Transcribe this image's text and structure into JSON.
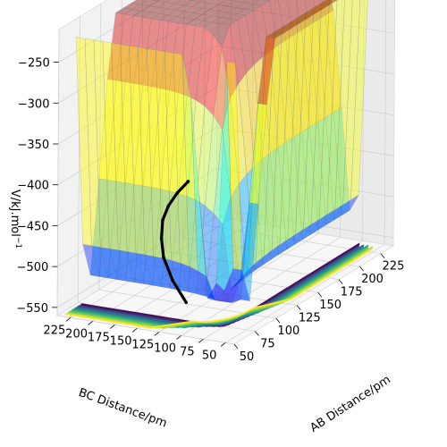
{
  "chart_data": {
    "type": "surface3d",
    "title": "",
    "xlabel": "AB Distance/pm",
    "ylabel": "BC Distance/pm",
    "zlabel": "V/kJ.mol$^{-1}$",
    "zlabel_text": "V/kJ.mol",
    "zlabel_sup": "−1",
    "xlim": [
      50,
      240
    ],
    "ylim": [
      40,
      240
    ],
    "zlim": [
      -560,
      -210
    ],
    "x_ticks": [
      50,
      75,
      100,
      125,
      150,
      175,
      200,
      225
    ],
    "x_tick_labels": [
      "50",
      "75",
      "100",
      "125",
      "150",
      "175",
      "200",
      "225"
    ],
    "y_ticks": [
      50,
      75,
      100,
      125,
      150,
      175,
      200,
      225
    ],
    "y_tick_labels": [
      "50",
      "75",
      "100",
      "125",
      "150",
      "175",
      "200",
      "225"
    ],
    "z_ticks": [
      -550,
      -500,
      -450,
      -400,
      -350,
      -300,
      -250
    ],
    "z_tick_labels": [
      "−550",
      "−500",
      "−450",
      "−400",
      "−350",
      "−300",
      "−250"
    ],
    "grid": true,
    "colormap_surface": "jet (semi-transparent)",
    "colormap_contour": "viridis",
    "surface_model": {
      "description_note": "",
      "well_depth": -545,
      "plateau": -234,
      "equilibrium_distance": 75,
      "saddle_point": [
        92,
        92
      ],
      "saddle_energy": -420
    },
    "trajectory": {
      "color": "#000000",
      "points": [
        {
          "x": 77,
          "y": 120,
          "z": -540
        },
        {
          "x": 82,
          "y": 140,
          "z": -520
        },
        {
          "x": 90,
          "y": 158,
          "z": -500
        },
        {
          "x": 100,
          "y": 170,
          "z": -485
        },
        {
          "x": 112,
          "y": 180,
          "z": -472
        },
        {
          "x": 125,
          "y": 186,
          "z": -464
        },
        {
          "x": 140,
          "y": 190,
          "z": -458
        },
        {
          "x": 155,
          "y": 192,
          "z": -454
        }
      ]
    }
  }
}
